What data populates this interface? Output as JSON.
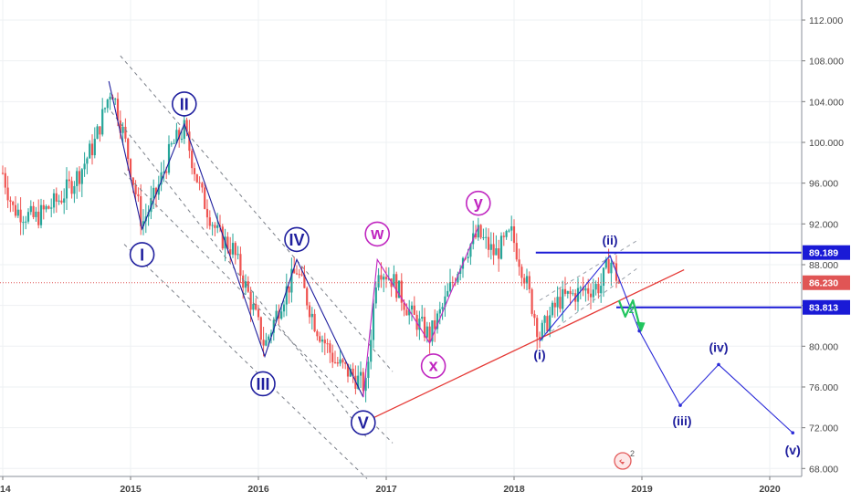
{
  "chart_data": {
    "type": "candlestick",
    "y_axis": {
      "ticks": [
        "112.000",
        "108.000",
        "104.000",
        "100.000",
        "96.000",
        "92.000",
        "88.000",
        "84.000",
        "80.000",
        "76.000",
        "72.000",
        "68.000"
      ],
      "range": [
        66.5,
        114.5
      ]
    },
    "x_axis": {
      "ticks": [
        "14",
        "2015",
        "2016",
        "2017",
        "2018",
        "2019",
        "2020"
      ],
      "range": [
        2014.0,
        2020.3
      ]
    },
    "price_levels": [
      {
        "value": 89.189,
        "label": "89.189",
        "color": "#1a1ad6",
        "style": "solid"
      },
      {
        "value": 86.23,
        "label": "86.230",
        "color": "#e05555",
        "style": "dotted"
      },
      {
        "value": 83.813,
        "label": "83.813",
        "color": "#1a1ad6",
        "style": "solid"
      }
    ],
    "wave_path": [
      {
        "x": 2014.83,
        "y": 106.0
      },
      {
        "x": 2015.09,
        "y": 91.5,
        "label": "I"
      },
      {
        "x": 2015.42,
        "y": 101.8,
        "label": "II"
      },
      {
        "x": 2016.05,
        "y": 79.0,
        "label": "III"
      },
      {
        "x": 2016.3,
        "y": 88.5,
        "label": "IV"
      },
      {
        "x": 2016.82,
        "y": 75.0,
        "label": "V"
      }
    ],
    "correction_path": [
      {
        "x": 2016.93,
        "y": 88.5,
        "label": "w"
      },
      {
        "x": 2017.34,
        "y": 80.3,
        "label": "x"
      },
      {
        "x": 2017.72,
        "y": 91.7,
        "label": "y"
      }
    ],
    "projection_path": [
      {
        "x": 2018.2,
        "y": 80.5,
        "label": "(i)"
      },
      {
        "x": 2018.75,
        "y": 88.9,
        "label": "(ii)"
      },
      {
        "x": 2018.98,
        "y": 81.5
      },
      {
        "x": 2019.3,
        "y": 74.2,
        "label": "(iii)"
      },
      {
        "x": 2019.6,
        "y": 78.2,
        "label": "(iv)"
      },
      {
        "x": 2020.18,
        "y": 71.5,
        "label": "(v)"
      }
    ],
    "trendline": {
      "from": {
        "x": 2016.82,
        "y": 72.5
      },
      "to": {
        "x": 2019.33,
        "y": 87.5
      }
    },
    "channel_lines": [
      {
        "from": {
          "x": 2014.92,
          "y": 108.5
        },
        "to": {
          "x": 2017.05,
          "y": 77.5
        }
      },
      {
        "from": {
          "x": 2014.85,
          "y": 103.0
        },
        "to": {
          "x": 2016.85,
          "y": 71.0
        }
      },
      {
        "from": {
          "x": 2014.95,
          "y": 97.0
        },
        "to": {
          "x": 2017.05,
          "y": 70.5
        }
      },
      {
        "from": {
          "x": 2014.95,
          "y": 90.0
        },
        "to": {
          "x": 2016.85,
          "y": 67.0
        }
      }
    ],
    "small_channel": [
      {
        "from": {
          "x": 2018.2,
          "y": 84.5
        },
        "to": {
          "x": 2018.98,
          "y": 90.5
        }
      },
      {
        "from": {
          "x": 2018.2,
          "y": 80.6
        },
        "to": {
          "x": 2018.98,
          "y": 87.8
        }
      }
    ],
    "green_arrow": [
      {
        "x": 2018.82,
        "y": 84.5
      },
      {
        "x": 2018.87,
        "y": 82.9
      },
      {
        "x": 2018.93,
        "y": 84.5
      },
      {
        "x": 2018.99,
        "y": 81.6
      }
    ],
    "green_label": "2",
    "badge_label": "2",
    "colors": {
      "up": "#26a69a",
      "down": "#ef5350",
      "wave_blue": "#1f1f9e",
      "correction_magenta": "#c026c0",
      "projection_blue": "#2a2ad8",
      "trend_red": "#e53935",
      "level_blue": "#1a1ad6",
      "green_arrow": "#22c55e"
    },
    "legend": "none",
    "grid": true
  }
}
